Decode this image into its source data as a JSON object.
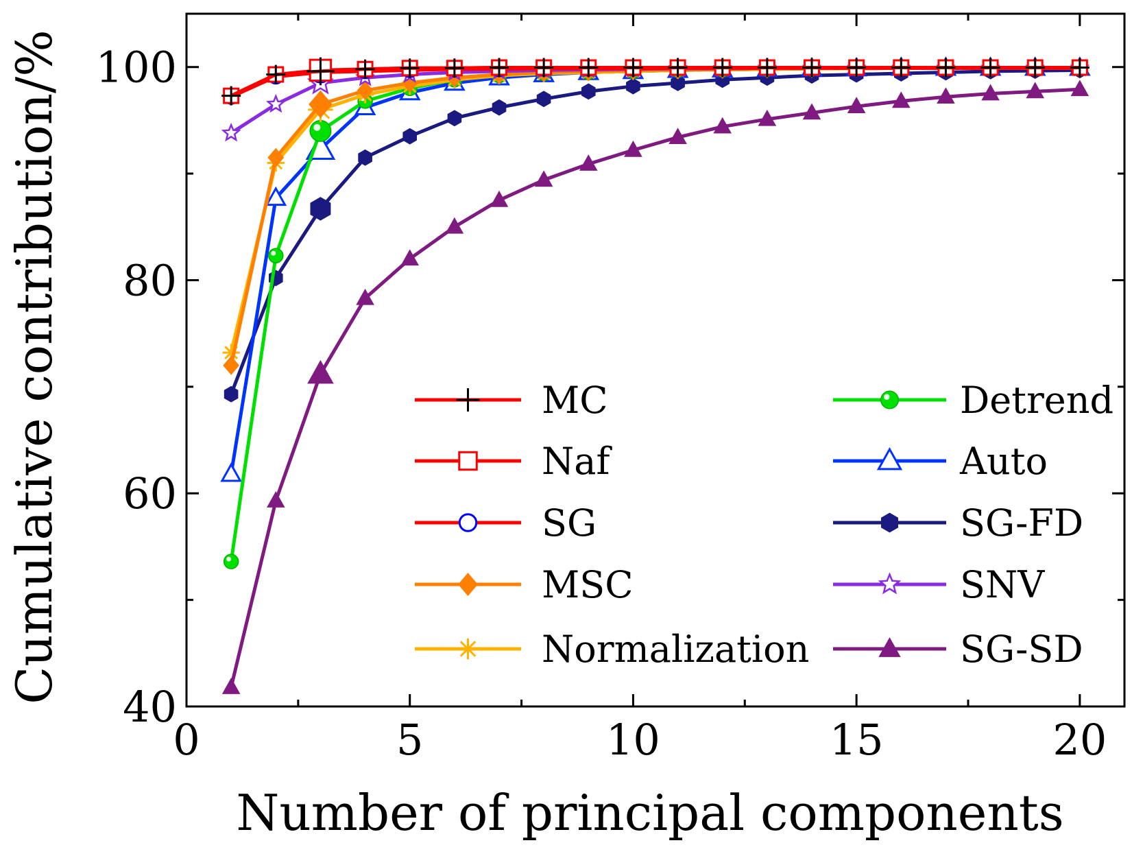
{
  "chart_data": {
    "type": "line",
    "xlabel": "Number of principal components",
    "ylabel": "Cumulative contribution/%",
    "xlim": [
      0,
      21
    ],
    "ylim": [
      40,
      105
    ],
    "xticks": [
      0,
      5,
      10,
      15,
      20
    ],
    "yticks": [
      40,
      60,
      80,
      100
    ],
    "grid": false,
    "legend": "bottom-right",
    "x": [
      1,
      2,
      3,
      4,
      5,
      6,
      7,
      8,
      9,
      10,
      11,
      12,
      13,
      14,
      15,
      16,
      17,
      18,
      19,
      20
    ],
    "series": [
      {
        "name": "MC",
        "color": "#ff0000",
        "marker": "plus",
        "values": [
          97.3,
          99.3,
          99.6,
          99.8,
          99.9,
          99.9,
          99.95,
          99.95,
          99.95,
          99.95,
          99.95,
          99.95,
          99.95,
          99.95,
          99.95,
          99.95,
          99.95,
          99.95,
          99.95,
          99.95
        ]
      },
      {
        "name": "Naf",
        "color": "#ff0000",
        "marker": "square",
        "values": [
          97.3,
          99.3,
          99.7,
          99.8,
          99.9,
          99.9,
          99.95,
          99.95,
          99.95,
          99.95,
          99.95,
          99.95,
          99.95,
          99.95,
          99.95,
          99.95,
          99.95,
          99.95,
          99.95,
          99.95
        ]
      },
      {
        "name": "SG",
        "color": "#ff0000",
        "marker": "circle",
        "values": [
          97.2,
          99.1,
          99.5,
          99.6,
          99.7,
          99.8,
          99.8,
          99.85,
          99.85,
          99.85,
          99.9,
          99.9,
          99.9,
          99.9,
          99.9,
          99.9,
          99.9,
          99.9,
          99.9,
          99.9
        ]
      },
      {
        "name": "MSC",
        "color": "#ff7f00",
        "marker": "diamond",
        "values": [
          72.0,
          91.5,
          96.5,
          97.8,
          98.5,
          99.0,
          99.3,
          99.5,
          99.6,
          99.7,
          99.75,
          99.8,
          99.85,
          99.85,
          99.9,
          99.9,
          99.9,
          99.9,
          99.9,
          99.9
        ]
      },
      {
        "name": "Normalization",
        "color": "#ffb300",
        "marker": "asterisk",
        "values": [
          73.2,
          91.0,
          96.0,
          97.4,
          98.2,
          98.8,
          99.2,
          99.4,
          99.5,
          99.6,
          99.7,
          99.75,
          99.8,
          99.85,
          99.85,
          99.9,
          99.9,
          99.9,
          99.9,
          99.9
        ]
      },
      {
        "name": "Detrend",
        "color": "#00e000",
        "marker": "ball",
        "values": [
          53.6,
          82.3,
          94.0,
          96.8,
          98.0,
          98.8,
          99.2,
          99.4,
          99.5,
          99.6,
          99.7,
          99.75,
          99.8,
          99.85,
          99.85,
          99.9,
          99.9,
          99.9,
          99.9,
          99.9
        ]
      },
      {
        "name": "Auto",
        "color": "#0033ff",
        "marker": "triangle-open",
        "values": [
          61.8,
          87.7,
          92.3,
          96.2,
          97.6,
          98.5,
          99.0,
          99.3,
          99.5,
          99.6,
          99.7,
          99.75,
          99.8,
          99.85,
          99.85,
          99.9,
          99.9,
          99.9,
          99.9,
          99.9
        ]
      },
      {
        "name": "SG-FD",
        "color": "#1a1a80",
        "marker": "hexagon",
        "values": [
          69.3,
          80.2,
          86.7,
          91.5,
          93.5,
          95.2,
          96.2,
          97.0,
          97.7,
          98.2,
          98.5,
          98.8,
          99.0,
          99.2,
          99.3,
          99.4,
          99.5,
          99.6,
          99.65,
          99.7
        ]
      },
      {
        "name": "SNV",
        "color": "#8a2be2",
        "marker": "star",
        "values": [
          93.8,
          96.5,
          98.5,
          99.0,
          99.3,
          99.5,
          99.6,
          99.7,
          99.75,
          99.8,
          99.85,
          99.85,
          99.9,
          99.9,
          99.9,
          99.9,
          99.9,
          99.9,
          99.9,
          99.9
        ]
      },
      {
        "name": "SG-SD",
        "color": "#7f1a80",
        "marker": "triangle",
        "values": [
          41.8,
          59.3,
          71.2,
          78.3,
          82.0,
          85.0,
          87.5,
          89.4,
          90.9,
          92.2,
          93.4,
          94.4,
          95.1,
          95.7,
          96.3,
          96.8,
          97.2,
          97.5,
          97.7,
          97.9
        ]
      }
    ]
  }
}
